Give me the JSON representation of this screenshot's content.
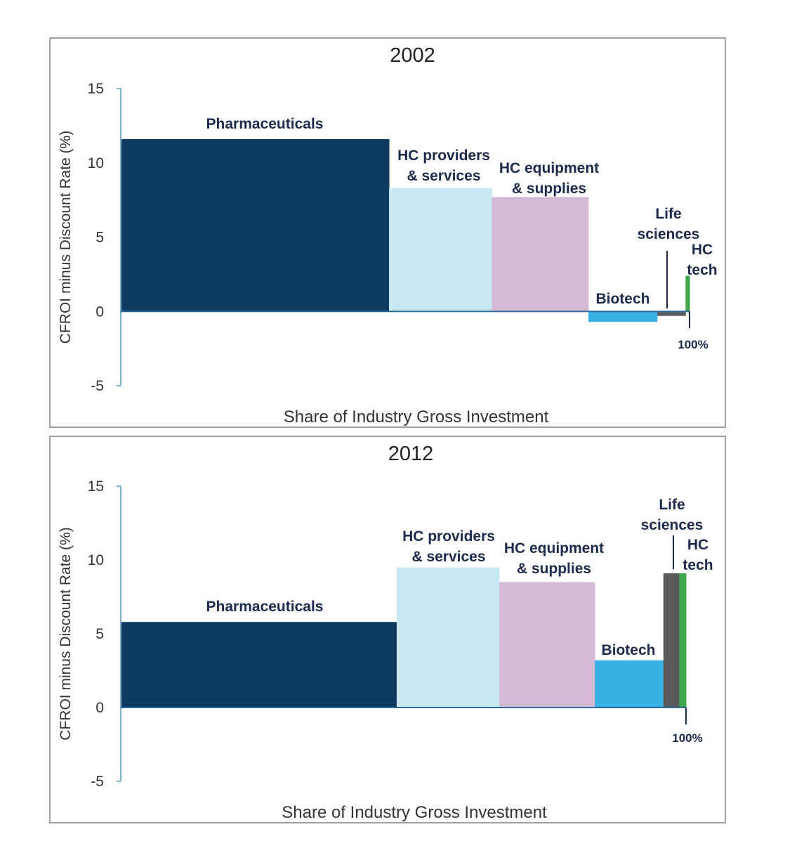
{
  "chart_data": [
    {
      "type": "bar",
      "title": "2002",
      "xlabel": "Share of Industry Gross Investment",
      "ylabel": "CFROI minus Discount Rate (%)",
      "ylim": [
        -5,
        15
      ],
      "yticks": [
        "15",
        "10",
        "5",
        "0",
        "-5"
      ],
      "end_label": "100%",
      "series": [
        {
          "name": "Pharmaceuticals",
          "label_lines": [
            "Pharmaceuticals"
          ],
          "share": 47.1,
          "value": 11.6,
          "color": "#0f3a5f"
        },
        {
          "name": "HC providers & services",
          "label_lines": [
            "HC providers",
            "& services"
          ],
          "share": 18.1,
          "value": 8.3,
          "color": "#c7e8f3"
        },
        {
          "name": "HC equipment & supplies",
          "label_lines": [
            "HC equipment",
            "& supplies"
          ],
          "share": 17.0,
          "value": 7.7,
          "color": "#d5bad6"
        },
        {
          "name": "Biotech",
          "label_lines": [
            "Biotech"
          ],
          "share": 12.1,
          "value": -0.7,
          "color": "#3ab0e4"
        },
        {
          "name": "Life sciences",
          "label_lines": [
            "Life",
            "sciences"
          ],
          "share": 5.0,
          "value": -0.3,
          "color": "#5a5a5a"
        },
        {
          "name": "HC tech",
          "label_lines": [
            "HC",
            "tech"
          ],
          "share": 0.7,
          "value": 2.4,
          "color": "#3fa64b"
        }
      ]
    },
    {
      "type": "bar",
      "title": "2012",
      "xlabel": "Share of Industry Gross Investment",
      "ylabel": "CFROI minus Discount Rate (%)",
      "ylim": [
        -5,
        15
      ],
      "yticks": [
        "15",
        "10",
        "5",
        "0",
        "-5"
      ],
      "end_label": "100%",
      "series": [
        {
          "name": "Pharmaceuticals",
          "label_lines": [
            "Pharmaceuticals"
          ],
          "share": 48.6,
          "value": 5.8,
          "color": "#0f3a5f"
        },
        {
          "name": "HC providers & services",
          "label_lines": [
            "HC providers",
            "& services"
          ],
          "share": 18.1,
          "value": 9.5,
          "color": "#c7e8f3"
        },
        {
          "name": "HC equipment & supplies",
          "label_lines": [
            "HC equipment",
            "& supplies"
          ],
          "share": 16.9,
          "value": 8.5,
          "color": "#d5bad6"
        },
        {
          "name": "Biotech",
          "label_lines": [
            "Biotech"
          ],
          "share": 12.1,
          "value": 3.2,
          "color": "#3ab0e4"
        },
        {
          "name": "Life sciences",
          "label_lines": [
            "Life",
            "sciences"
          ],
          "share": 2.8,
          "value": 9.1,
          "color": "#5a5a5a"
        },
        {
          "name": "HC tech",
          "label_lines": [
            "HC",
            "tech"
          ],
          "share": 1.2,
          "value": 9.1,
          "color": "#3fa64b"
        }
      ]
    }
  ]
}
